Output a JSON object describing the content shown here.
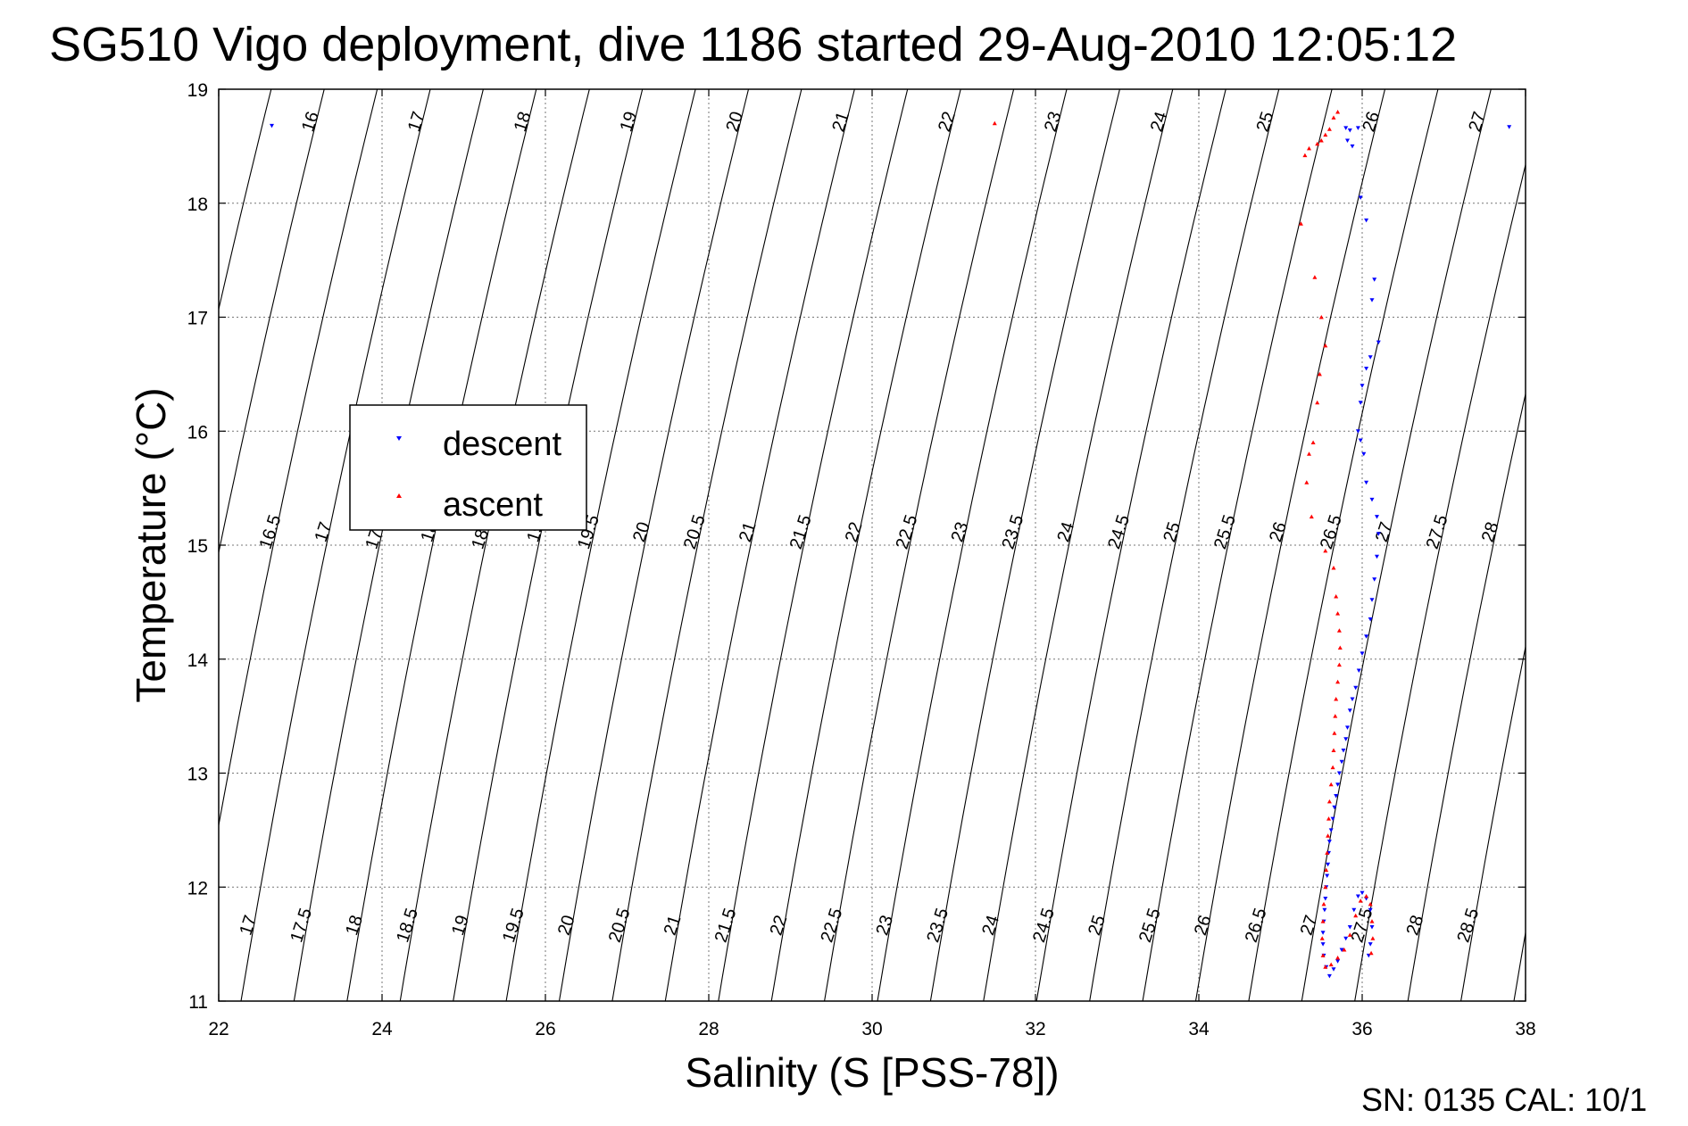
{
  "chart_data": {
    "type": "scatter",
    "title": "SG510 Vigo deployment, dive 1186 started 29-Aug-2010 12:05:12",
    "xlabel": "Salinity (S [PSS-78])",
    "ylabel": "Temperature (°C)",
    "xlim": [
      22,
      38
    ],
    "ylim": [
      11,
      19
    ],
    "x_ticks": [
      "22",
      "24",
      "26",
      "28",
      "30",
      "32",
      "34",
      "36",
      "38"
    ],
    "y_ticks": [
      "11",
      "12",
      "13",
      "14",
      "15",
      "16",
      "17",
      "18",
      "19"
    ],
    "grid": true,
    "legend": {
      "position": "upper-left-inset",
      "entries": [
        "descent",
        "ascent"
      ]
    },
    "footer": "SN: 0135  CAL: 10/1",
    "series": [
      {
        "name": "descent",
        "color": "#0000ff",
        "marker": "triangle-down",
        "points": [
          [
            22.65,
            18.68
          ],
          [
            37.8,
            18.67
          ],
          [
            35.95,
            18.66
          ],
          [
            35.85,
            18.64
          ],
          [
            35.8,
            18.66
          ],
          [
            35.82,
            18.55
          ],
          [
            35.88,
            18.5
          ],
          [
            35.98,
            18.05
          ],
          [
            36.05,
            17.85
          ],
          [
            36.15,
            17.33
          ],
          [
            36.12,
            17.15
          ],
          [
            36.2,
            16.78
          ],
          [
            36.1,
            16.65
          ],
          [
            36.05,
            16.55
          ],
          [
            36.0,
            16.4
          ],
          [
            35.98,
            16.25
          ],
          [
            35.95,
            16.0
          ],
          [
            35.98,
            15.92
          ],
          [
            36.02,
            15.8
          ],
          [
            36.05,
            15.55
          ],
          [
            36.12,
            15.4
          ],
          [
            36.18,
            15.25
          ],
          [
            36.2,
            15.1
          ],
          [
            36.18,
            14.9
          ],
          [
            36.15,
            14.7
          ],
          [
            36.12,
            14.52
          ],
          [
            36.1,
            14.35
          ],
          [
            36.05,
            14.2
          ],
          [
            36.0,
            14.05
          ],
          [
            35.96,
            13.9
          ],
          [
            35.92,
            13.75
          ],
          [
            35.88,
            13.65
          ],
          [
            35.85,
            13.55
          ],
          [
            35.82,
            13.4
          ],
          [
            35.8,
            13.3
          ],
          [
            35.77,
            13.2
          ],
          [
            35.75,
            13.1
          ],
          [
            35.72,
            13.0
          ],
          [
            35.7,
            12.9
          ],
          [
            35.68,
            12.8
          ],
          [
            35.66,
            12.7
          ],
          [
            35.64,
            12.6
          ],
          [
            35.62,
            12.5
          ],
          [
            35.6,
            12.4
          ],
          [
            35.59,
            12.3
          ],
          [
            35.58,
            12.2
          ],
          [
            35.57,
            12.1
          ],
          [
            35.56,
            12.0
          ],
          [
            35.55,
            11.9
          ],
          [
            35.54,
            11.8
          ],
          [
            35.53,
            11.7
          ],
          [
            35.52,
            11.6
          ],
          [
            35.52,
            11.5
          ],
          [
            35.53,
            11.4
          ],
          [
            35.56,
            11.3
          ],
          [
            35.6,
            11.22
          ],
          [
            35.65,
            11.28
          ],
          [
            35.7,
            11.35
          ],
          [
            35.75,
            11.45
          ],
          [
            35.8,
            11.55
          ],
          [
            35.85,
            11.65
          ],
          [
            35.9,
            11.8
          ],
          [
            35.95,
            11.92
          ],
          [
            36.0,
            11.95
          ],
          [
            36.05,
            11.9
          ],
          [
            36.1,
            11.8
          ],
          [
            36.12,
            11.65
          ],
          [
            36.1,
            11.5
          ],
          [
            36.08,
            11.4
          ]
        ]
      },
      {
        "name": "ascent",
        "color": "#ff0000",
        "marker": "triangle-up",
        "points": [
          [
            31.5,
            18.7
          ],
          [
            35.25,
            17.82
          ],
          [
            35.7,
            18.8
          ],
          [
            35.65,
            18.75
          ],
          [
            35.6,
            18.65
          ],
          [
            35.55,
            18.6
          ],
          [
            35.5,
            18.55
          ],
          [
            35.45,
            18.52
          ],
          [
            35.35,
            18.48
          ],
          [
            35.3,
            18.42
          ],
          [
            35.42,
            17.35
          ],
          [
            35.5,
            17.0
          ],
          [
            35.55,
            16.75
          ],
          [
            35.48,
            16.5
          ],
          [
            35.45,
            16.25
          ],
          [
            35.4,
            15.9
          ],
          [
            35.35,
            15.8
          ],
          [
            35.32,
            15.55
          ],
          [
            35.38,
            15.25
          ],
          [
            35.55,
            14.95
          ],
          [
            35.65,
            14.8
          ],
          [
            35.68,
            14.55
          ],
          [
            35.7,
            14.4
          ],
          [
            35.72,
            14.25
          ],
          [
            35.73,
            14.1
          ],
          [
            35.72,
            13.95
          ],
          [
            35.7,
            13.8
          ],
          [
            35.68,
            13.65
          ],
          [
            35.67,
            13.5
          ],
          [
            35.66,
            13.35
          ],
          [
            35.65,
            13.2
          ],
          [
            35.64,
            13.05
          ],
          [
            35.62,
            12.9
          ],
          [
            35.6,
            12.75
          ],
          [
            35.59,
            12.6
          ],
          [
            35.58,
            12.45
          ],
          [
            35.57,
            12.3
          ],
          [
            35.56,
            12.15
          ],
          [
            35.55,
            12.0
          ],
          [
            35.53,
            11.85
          ],
          [
            35.52,
            11.7
          ],
          [
            35.51,
            11.55
          ],
          [
            35.52,
            11.4
          ],
          [
            35.55,
            11.3
          ],
          [
            35.62,
            11.32
          ],
          [
            35.7,
            11.38
          ],
          [
            35.78,
            11.45
          ],
          [
            35.85,
            11.58
          ],
          [
            35.92,
            11.75
          ],
          [
            35.98,
            11.88
          ],
          [
            36.05,
            11.92
          ],
          [
            36.1,
            11.85
          ],
          [
            36.12,
            11.7
          ],
          [
            36.13,
            11.55
          ],
          [
            36.11,
            11.42
          ]
        ]
      }
    ]
  }
}
